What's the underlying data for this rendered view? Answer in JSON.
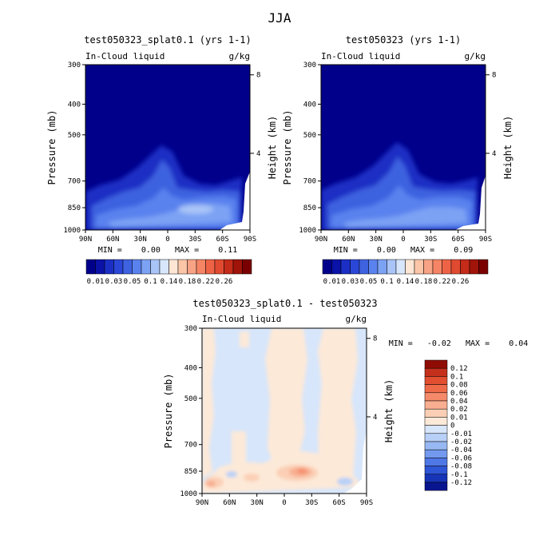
{
  "page_title": "JJA",
  "colors": {
    "blues": [
      "#00008b",
      "#0a12a8",
      "#1b2fc4",
      "#2b47d8",
      "#3e62e0",
      "#5a82ee",
      "#7ca2f4",
      "#a9c4f7",
      "#d7e6fb"
    ],
    "reds": [
      "#fde6d4",
      "#fbc5a8",
      "#f8a385",
      "#f58565",
      "#ee6346",
      "#e04a30",
      "#c42b19",
      "#a01409",
      "#7a0000"
    ],
    "diff_pos": [
      "#fde9d8",
      "#fbcfb5",
      "#f8ae90",
      "#f58a6b",
      "#ef6a48",
      "#e14f30",
      "#c4301b",
      "#8f0c05"
    ],
    "diff_neg": [
      "#d7e6fb",
      "#b8d0f7",
      "#97b8f2",
      "#7399ee",
      "#4f77e6",
      "#2e55d6",
      "#1733b6",
      "#08158f"
    ]
  },
  "chart_data": [
    {
      "type": "heatmap",
      "title": "test050323_splat0.1 (yrs 1-1)",
      "left_label": "In-Cloud liquid",
      "units": "g/kg",
      "ylabel": "Pressure (mb)",
      "y2label": "Height (km)",
      "x_ticks": [
        "90N",
        "60N",
        "30N",
        "0",
        "30S",
        "60S",
        "90S"
      ],
      "y_ticks": [
        "300",
        "400",
        "500",
        "700",
        "850",
        "1000"
      ],
      "y2_ticks": [
        "8",
        "4"
      ],
      "stats": "MIN =    0.00   MAX =    0.11",
      "colorbar_labels": [
        "0.01",
        "0.03",
        "0.05",
        "0.1",
        "0.14",
        "0.18",
        "0.22",
        "0.26"
      ],
      "min": 0.0,
      "max": 0.11
    },
    {
      "type": "heatmap",
      "title": "test050323 (yrs 1-1)",
      "left_label": "In-Cloud liquid",
      "units": "g/kg",
      "ylabel": "Pressure (mb)",
      "y2label": "Height (km)",
      "x_ticks": [
        "90N",
        "60N",
        "30N",
        "0",
        "30S",
        "60S",
        "90S"
      ],
      "y_ticks": [
        "300",
        "400",
        "500",
        "700",
        "850",
        "1000"
      ],
      "y2_ticks": [
        "8",
        "4"
      ],
      "stats": "MIN =    0.00   MAX =    0.09",
      "colorbar_labels": [
        "0.01",
        "0.03",
        "0.05",
        "0.1",
        "0.14",
        "0.18",
        "0.22",
        "0.26"
      ],
      "min": 0.0,
      "max": 0.09
    },
    {
      "type": "heatmap",
      "title": "test050323_splat0.1 - test050323",
      "left_label": "In-Cloud liquid",
      "units": "g/kg",
      "ylabel": "Pressure (mb)",
      "y2label": "Height (km)",
      "x_ticks": [
        "90N",
        "60N",
        "30N",
        "0",
        "30S",
        "60S",
        "90S"
      ],
      "y_ticks": [
        "300",
        "400",
        "500",
        "700",
        "850",
        "1000"
      ],
      "y2_ticks": [
        "8",
        "4"
      ],
      "stats": "MIN =   -0.02   MAX =    0.04",
      "colorbar_labels": [
        "0.12",
        "0.1",
        "0.08",
        "0.06",
        "0.04",
        "0.02",
        "0.01",
        "0",
        "-0.01",
        "-0.02",
        "-0.04",
        "-0.06",
        "-0.08",
        "-0.1",
        "-0.12"
      ],
      "min": -0.02,
      "max": 0.04
    }
  ]
}
